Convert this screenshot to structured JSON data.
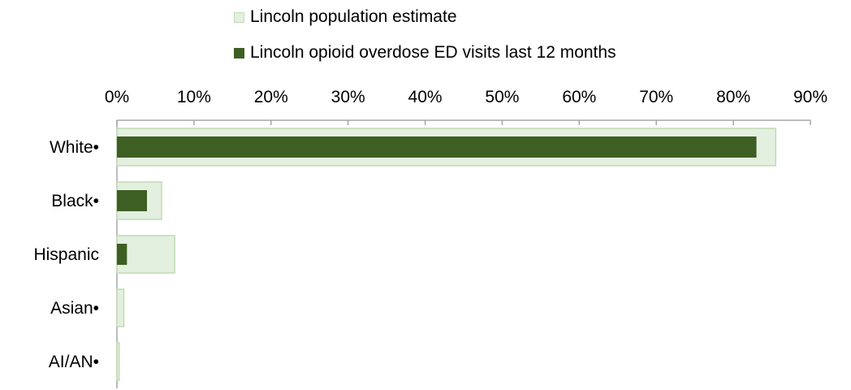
{
  "colors": {
    "population_fill": "#e3efdf",
    "population_stroke": "#c2dcb4",
    "visits_fill": "#3e5f23",
    "axis": "#a6a6a6"
  },
  "legend": [
    {
      "label": "Lincoln population estimate",
      "swatch": "population"
    },
    {
      "label": "Lincoln opioid overdose ED visits last 12 months",
      "swatch": "visits"
    }
  ],
  "chart_data": {
    "type": "bar",
    "orientation": "horizontal",
    "axis_position": "top",
    "legend_position": "top",
    "xlim": [
      0,
      90
    ],
    "ticks": [
      {
        "value": 0,
        "label": "0%"
      },
      {
        "value": 10,
        "label": "10%"
      },
      {
        "value": 20,
        "label": "20%"
      },
      {
        "value": 30,
        "label": "30%"
      },
      {
        "value": 40,
        "label": "40%"
      },
      {
        "value": 50,
        "label": "50%"
      },
      {
        "value": 60,
        "label": "60%"
      },
      {
        "value": 70,
        "label": "70%"
      },
      {
        "value": 80,
        "label": "80%"
      },
      {
        "value": 90,
        "label": "90%"
      }
    ],
    "categories": [
      "White•",
      "Black•",
      "Hispanic",
      "Asian•",
      "AI/AN•"
    ],
    "series": [
      {
        "name": "Lincoln population estimate",
        "values": [
          85.5,
          5.8,
          7.5,
          0.9,
          0.3
        ]
      },
      {
        "name": "Lincoln opioid overdose ED visits last 12 months",
        "values": [
          83.0,
          3.9,
          1.3,
          0,
          0
        ]
      }
    ]
  }
}
